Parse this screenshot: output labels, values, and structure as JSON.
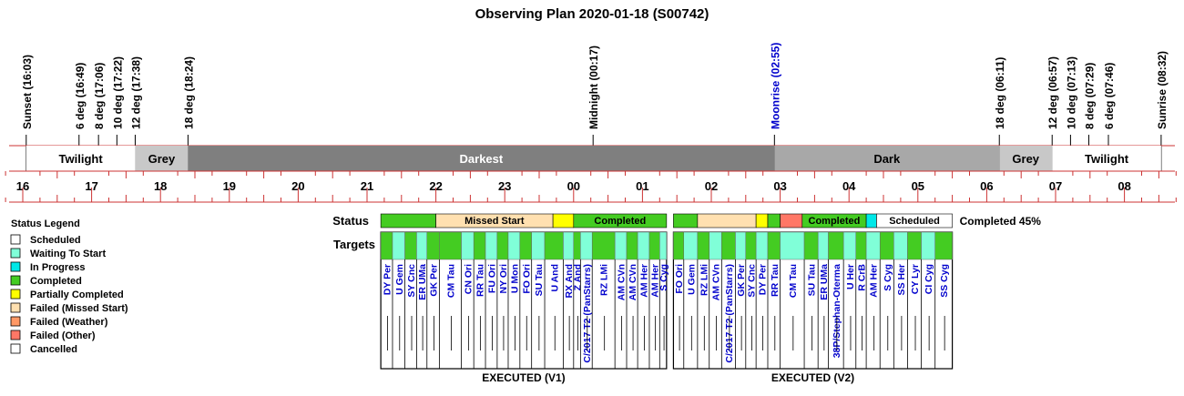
{
  "chart_data": {
    "type": "timeline",
    "title": "Observing Plan 2020-01-18 (S00742)",
    "time_axis": {
      "start_hour": 15.8,
      "end_hour": 32.8,
      "tick_labels": [
        {
          "h": 16,
          "label": "16"
        },
        {
          "h": 17,
          "label": "17"
        },
        {
          "h": 18,
          "label": "18"
        },
        {
          "h": 19,
          "label": "19"
        },
        {
          "h": 20,
          "label": "20"
        },
        {
          "h": 21,
          "label": "21"
        },
        {
          "h": 22,
          "label": "22"
        },
        {
          "h": 23,
          "label": "23"
        },
        {
          "h": 24,
          "label": "00"
        },
        {
          "h": 25,
          "label": "01"
        },
        {
          "h": 26,
          "label": "02"
        },
        {
          "h": 27,
          "label": "03"
        },
        {
          "h": 28,
          "label": "04"
        },
        {
          "h": 29,
          "label": "05"
        },
        {
          "h": 30,
          "label": "06"
        },
        {
          "h": 31,
          "label": "07"
        },
        {
          "h": 32,
          "label": "08"
        }
      ]
    },
    "events": [
      {
        "h": 16.05,
        "label": "Sunset (16:03)",
        "color": "#000000"
      },
      {
        "h": 16.817,
        "label": "6 deg (16:49)",
        "color": "#000000"
      },
      {
        "h": 17.1,
        "label": "8 deg (17:06)",
        "color": "#000000"
      },
      {
        "h": 17.367,
        "label": "10 deg (17:22)",
        "color": "#000000"
      },
      {
        "h": 17.633,
        "label": "12 deg (17:38)",
        "color": "#000000"
      },
      {
        "h": 18.4,
        "label": "18 deg (18:24)",
        "color": "#000000"
      },
      {
        "h": 24.283,
        "label": "Midnight (00:17)",
        "color": "#000000"
      },
      {
        "h": 26.917,
        "label": "Moonrise (02:55)",
        "color": "#0000cc"
      },
      {
        "h": 30.183,
        "label": "18 deg (06:11)",
        "color": "#000000"
      },
      {
        "h": 30.95,
        "label": "12 deg (06:57)",
        "color": "#000000"
      },
      {
        "h": 31.217,
        "label": "10 deg (07:13)",
        "color": "#000000"
      },
      {
        "h": 31.483,
        "label": "8 deg (07:29)",
        "color": "#000000"
      },
      {
        "h": 31.767,
        "label": "6 deg (07:46)",
        "color": "#000000"
      },
      {
        "h": 32.533,
        "label": "Sunrise (08:32)",
        "color": "#000000"
      }
    ],
    "sky_bands": [
      {
        "start": 16.05,
        "end": 17.633,
        "label": "Twilight",
        "color": "#ffffff",
        "text_color": "#000000"
      },
      {
        "start": 17.633,
        "end": 18.4,
        "label": "Grey",
        "color": "#c8c8c8",
        "text_color": "#000000"
      },
      {
        "start": 18.4,
        "end": 26.917,
        "label": "Darkest",
        "color": "#7f7f7f",
        "text_color": "#ffffff"
      },
      {
        "start": 26.917,
        "end": 30.183,
        "label": "Dark",
        "color": "#a8a8a8",
        "text_color": "#000000"
      },
      {
        "start": 30.183,
        "end": 30.95,
        "label": "Grey",
        "color": "#c8c8c8",
        "text_color": "#000000"
      },
      {
        "start": 30.95,
        "end": 32.533,
        "label": "Twilight",
        "color": "#ffffff",
        "text_color": "#000000"
      }
    ],
    "row_labels": {
      "status": "Status",
      "targets": "Targets"
    },
    "completion_text": "Completed 45%",
    "plans": [
      {
        "label": "EXECUTED (V1)",
        "status_segments": [
          {
            "start": 21.2,
            "end": 22.0,
            "status": "Completed",
            "label": ""
          },
          {
            "start": 22.0,
            "end": 23.7,
            "status": "Failed (Missed Start)",
            "label": "Missed Start"
          },
          {
            "start": 23.7,
            "end": 24.0,
            "status": "Partially Completed",
            "label": ""
          },
          {
            "start": 24.0,
            "end": 25.35,
            "status": "Completed",
            "label": "Completed"
          }
        ],
        "targets": [
          {
            "start": 21.2,
            "end": 21.37,
            "name": "DY Per",
            "status": "Completed"
          },
          {
            "start": 21.37,
            "end": 21.55,
            "name": "U Gem",
            "status": "Waiting To Start"
          },
          {
            "start": 21.55,
            "end": 21.72,
            "name": "SY Cnc",
            "status": "Completed"
          },
          {
            "start": 21.72,
            "end": 21.87,
            "name": "ER UMa",
            "status": "Waiting To Start"
          },
          {
            "start": 21.87,
            "end": 22.05,
            "name": "GK Per",
            "status": "Completed"
          },
          {
            "start": 22.05,
            "end": 22.37,
            "name": "CM Tau",
            "status": "Completed"
          },
          {
            "start": 22.37,
            "end": 22.55,
            "name": "CN Ori",
            "status": "Waiting To Start"
          },
          {
            "start": 22.55,
            "end": 22.72,
            "name": "RR Tau",
            "status": "Completed"
          },
          {
            "start": 22.72,
            "end": 22.89,
            "name": "FU Ori",
            "status": "Waiting To Start"
          },
          {
            "start": 22.89,
            "end": 23.05,
            "name": "NY Ori",
            "status": "Completed"
          },
          {
            "start": 23.05,
            "end": 23.22,
            "name": "U Mon",
            "status": "Waiting To Start"
          },
          {
            "start": 23.22,
            "end": 23.39,
            "name": "FO Ori",
            "status": "Completed"
          },
          {
            "start": 23.39,
            "end": 23.58,
            "name": "SU Tau",
            "status": "Waiting To Start"
          },
          {
            "start": 23.58,
            "end": 23.85,
            "name": "U And",
            "status": "Completed"
          },
          {
            "start": 23.85,
            "end": 24.0,
            "name": "RX And",
            "status": "Waiting To Start"
          },
          {
            "start": 24.0,
            "end": 24.1,
            "name": "Z And",
            "status": "Completed"
          },
          {
            "start": 24.1,
            "end": 24.27,
            "name": "C/2017 T2 (PanStarrs)",
            "status": "Waiting To Start"
          },
          {
            "start": 24.27,
            "end": 24.6,
            "name": "RZ LMi",
            "status": "Completed"
          },
          {
            "start": 24.6,
            "end": 24.77,
            "name": "AM CVn",
            "status": "Waiting To Start"
          },
          {
            "start": 24.77,
            "end": 24.93,
            "name": "AM CVn",
            "status": "Completed"
          },
          {
            "start": 24.93,
            "end": 25.1,
            "name": "AM Her",
            "status": "Waiting To Start"
          },
          {
            "start": 25.1,
            "end": 25.25,
            "name": "AM Her",
            "status": "Completed"
          },
          {
            "start": 25.25,
            "end": 25.35,
            "name": "S Cyg",
            "status": "Waiting To Start"
          }
        ]
      },
      {
        "label": "EXECUTED (V2)",
        "status_segments": [
          {
            "start": 25.45,
            "end": 25.8,
            "status": "Completed",
            "label": ""
          },
          {
            "start": 25.8,
            "end": 26.65,
            "status": "Failed (Missed Start)",
            "label": ""
          },
          {
            "start": 26.65,
            "end": 26.82,
            "status": "Partially Completed",
            "label": ""
          },
          {
            "start": 26.82,
            "end": 27.0,
            "status": "Completed",
            "label": ""
          },
          {
            "start": 27.0,
            "end": 27.32,
            "status": "Failed (Other)",
            "label": ""
          },
          {
            "start": 27.32,
            "end": 28.25,
            "status": "Completed",
            "label": "Completed"
          },
          {
            "start": 28.25,
            "end": 28.4,
            "status": "In Progress",
            "label": ""
          },
          {
            "start": 28.4,
            "end": 29.5,
            "status": "Scheduled",
            "label": "Scheduled"
          }
        ],
        "targets": [
          {
            "start": 25.45,
            "end": 25.6,
            "name": "FO Ori",
            "status": "Completed"
          },
          {
            "start": 25.6,
            "end": 25.8,
            "name": "U Gem",
            "status": "Waiting To Start"
          },
          {
            "start": 25.8,
            "end": 25.97,
            "name": "RZ LMi",
            "status": "Completed"
          },
          {
            "start": 25.97,
            "end": 26.15,
            "name": "AM CVn",
            "status": "Waiting To Start"
          },
          {
            "start": 26.15,
            "end": 26.35,
            "name": "C/2017 T2 (PanStarrs)",
            "status": "Completed"
          },
          {
            "start": 26.35,
            "end": 26.5,
            "name": "GK Per",
            "status": "Waiting To Start"
          },
          {
            "start": 26.5,
            "end": 26.65,
            "name": "SY Cnc",
            "status": "Completed"
          },
          {
            "start": 26.65,
            "end": 26.82,
            "name": "DY Per",
            "status": "Waiting To Start"
          },
          {
            "start": 26.82,
            "end": 27.0,
            "name": "RR Tau",
            "status": "Completed"
          },
          {
            "start": 27.0,
            "end": 27.35,
            "name": "CM Tau",
            "status": "Waiting To Start"
          },
          {
            "start": 27.35,
            "end": 27.55,
            "name": "SU Tau",
            "status": "Completed"
          },
          {
            "start": 27.55,
            "end": 27.7,
            "name": "ER UMa",
            "status": "Waiting To Start"
          },
          {
            "start": 27.7,
            "end": 27.92,
            "name": "38P/Stephan-Oterma",
            "status": "Completed"
          },
          {
            "start": 27.92,
            "end": 28.1,
            "name": "U Her",
            "status": "Waiting To Start"
          },
          {
            "start": 28.1,
            "end": 28.25,
            "name": "R CrB",
            "status": "Completed"
          },
          {
            "start": 28.25,
            "end": 28.45,
            "name": "AM Her",
            "status": "Waiting To Start"
          },
          {
            "start": 28.45,
            "end": 28.65,
            "name": "S Cyg",
            "status": "Completed"
          },
          {
            "start": 28.65,
            "end": 28.85,
            "name": "SS Her",
            "status": "Waiting To Start"
          },
          {
            "start": 28.85,
            "end": 29.05,
            "name": "CY Lyr",
            "status": "Completed"
          },
          {
            "start": 29.05,
            "end": 29.25,
            "name": "CI Cyg",
            "status": "Waiting To Start"
          },
          {
            "start": 29.25,
            "end": 29.5,
            "name": "SS Cyg",
            "status": "Completed"
          }
        ]
      }
    ],
    "legend": {
      "title": "Status Legend",
      "items": [
        {
          "label": "Scheduled",
          "color": "#ffffff"
        },
        {
          "label": "Waiting To Start",
          "color": "#80ffd8"
        },
        {
          "label": "In Progress",
          "color": "#00e8e8"
        },
        {
          "label": "Completed",
          "color": "#44cc22"
        },
        {
          "label": "Partially Completed",
          "color": "#ffff00"
        },
        {
          "label": "Failed (Missed Start)",
          "color": "#ffe0b0"
        },
        {
          "label": "Failed (Weather)",
          "color": "#ff9966"
        },
        {
          "label": "Failed (Other)",
          "color": "#ff7766"
        },
        {
          "label": "Cancelled",
          "color": "#ffffff"
        }
      ]
    }
  }
}
